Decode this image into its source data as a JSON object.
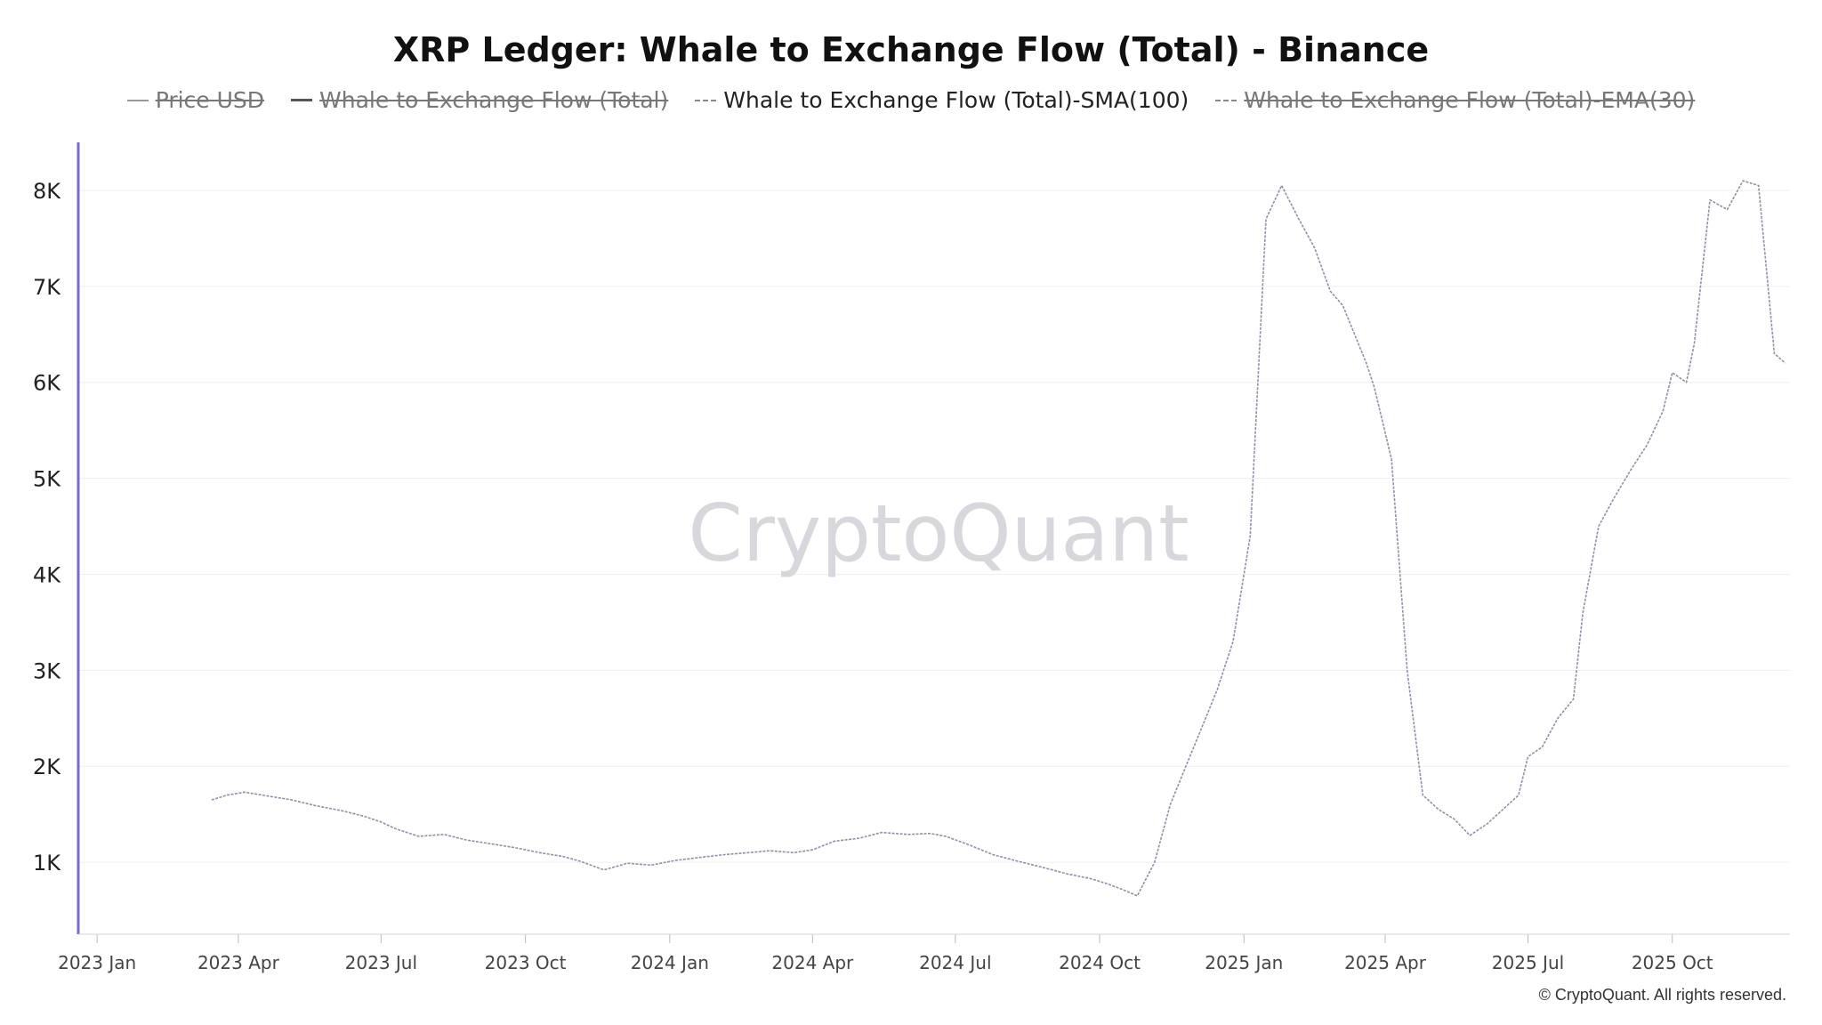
{
  "chart_data": {
    "type": "line",
    "title": "XRP Ledger: Whale to Exchange Flow (Total) - Binance",
    "legend": [
      {
        "label": "Price USD",
        "hidden": true,
        "style": "solid-light"
      },
      {
        "label": "Whale to Exchange Flow (Total)",
        "hidden": true,
        "style": "solid-dark"
      },
      {
        "label": "Whale to Exchange Flow (Total)-SMA(100)",
        "hidden": false,
        "style": "dashed"
      },
      {
        "label": "Whale to Exchange Flow (Total)-EMA(30)",
        "hidden": true,
        "style": "dashed"
      }
    ],
    "legend_placement": "top-center",
    "watermark": "CryptoQuant",
    "credit": "© CryptoQuant. All rights reserved.",
    "x_ticks": [
      "2023 Jan",
      "2023 Apr",
      "2023 Jul",
      "2023 Oct",
      "2024 Jan",
      "2024 Apr",
      "2024 Jul",
      "2024 Oct",
      "2025 Jan",
      "2025 Apr",
      "2025 Jul",
      "2025 Oct"
    ],
    "y_ticks": [
      "1K",
      "2K",
      "3K",
      "4K",
      "5K",
      "6K",
      "7K",
      "8K"
    ],
    "ylim": [
      250,
      8500
    ],
    "xlim": [
      "2022-12-20",
      "2025-12-15"
    ],
    "grid": true,
    "line_color": "#8f8fa8",
    "axis_color": "#7b68c8",
    "series": [
      {
        "name": "Whale to Exchange Flow (Total)-SMA(100)",
        "x": [
          "2023-03-15",
          "2023-03-25",
          "2023-04-05",
          "2023-04-20",
          "2023-05-05",
          "2023-05-20",
          "2023-06-05",
          "2023-06-20",
          "2023-07-01",
          "2023-07-10",
          "2023-07-25",
          "2023-08-10",
          "2023-08-25",
          "2023-09-10",
          "2023-09-25",
          "2023-10-10",
          "2023-10-25",
          "2023-11-05",
          "2023-11-20",
          "2023-12-05",
          "2023-12-20",
          "2024-01-05",
          "2024-01-20",
          "2024-02-05",
          "2024-02-20",
          "2024-03-05",
          "2024-03-20",
          "2024-04-01",
          "2024-04-15",
          "2024-05-01",
          "2024-05-15",
          "2024-06-01",
          "2024-06-15",
          "2024-06-25",
          "2024-07-10",
          "2024-07-25",
          "2024-08-10",
          "2024-08-25",
          "2024-09-10",
          "2024-09-25",
          "2024-10-05",
          "2024-10-15",
          "2024-10-25",
          "2024-11-05",
          "2024-11-15",
          "2024-11-25",
          "2024-12-05",
          "2024-12-15",
          "2024-12-25",
          "2025-01-05",
          "2025-01-15",
          "2025-01-25",
          "2025-02-05",
          "2025-02-15",
          "2025-02-25",
          "2025-03-05",
          "2025-03-15",
          "2025-03-20",
          "2025-03-25",
          "2025-04-05",
          "2025-04-15",
          "2025-04-25",
          "2025-05-05",
          "2025-05-15",
          "2025-05-25",
          "2025-06-05",
          "2025-06-15",
          "2025-06-25",
          "2025-07-01",
          "2025-07-10",
          "2025-07-20",
          "2025-07-30",
          "2025-08-05",
          "2025-08-15",
          "2025-08-25",
          "2025-09-05",
          "2025-09-15",
          "2025-09-25",
          "2025-10-01",
          "2025-10-10",
          "2025-10-15",
          "2025-10-25",
          "2025-11-05",
          "2025-11-15",
          "2025-11-25",
          "2025-12-05",
          "2025-12-12"
        ],
        "values": [
          1650,
          1700,
          1730,
          1690,
          1650,
          1590,
          1540,
          1480,
          1420,
          1350,
          1270,
          1290,
          1230,
          1190,
          1150,
          1100,
          1060,
          1010,
          920,
          990,
          970,
          1020,
          1050,
          1080,
          1100,
          1120,
          1100,
          1130,
          1220,
          1250,
          1310,
          1290,
          1300,
          1270,
          1180,
          1080,
          1010,
          950,
          880,
          830,
          780,
          720,
          650,
          1000,
          1600,
          2000,
          2400,
          2800,
          3300,
          4400,
          7700,
          8050,
          7700,
          7400,
          6950,
          6800,
          6400,
          6200,
          5950,
          5200,
          3000,
          1700,
          1550,
          1450,
          1280,
          1400,
          1550,
          1700,
          2100,
          2200,
          2500,
          2700,
          3600,
          4500,
          4800,
          5100,
          5350,
          5700,
          6100,
          6000,
          6400,
          7900,
          7800,
          8100,
          8050,
          6300,
          6200
        ]
      }
    ]
  }
}
